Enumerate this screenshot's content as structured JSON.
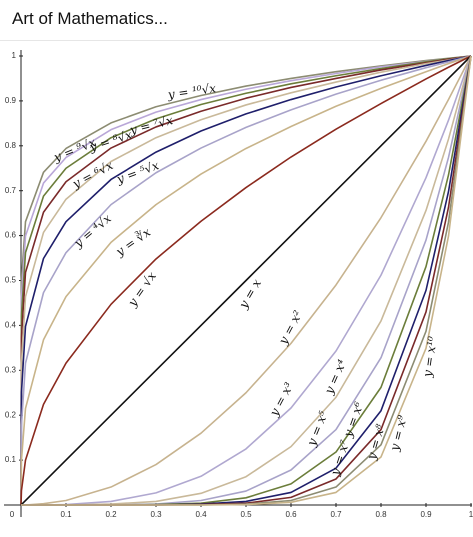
{
  "header": {
    "title": "Art of Mathematics..."
  },
  "chart_data": {
    "type": "line",
    "x": [
      0,
      0.001,
      0.01,
      0.05,
      0.1,
      0.2,
      0.3,
      0.4,
      0.5,
      0.6,
      0.7,
      0.8,
      0.9,
      0.95,
      1
    ],
    "xlim": [
      0,
      1
    ],
    "ylim": [
      0,
      1
    ],
    "xticks": [
      0,
      0.1,
      0.2,
      0.3,
      0.4,
      0.5,
      0.6,
      0.7,
      0.8,
      0.9,
      1
    ],
    "yticks": [
      0.1,
      0.2,
      0.3,
      0.4,
      0.5,
      0.6,
      0.7,
      0.8,
      0.9,
      1
    ],
    "series": [
      {
        "name": "y = ¹⁰√x",
        "color": "#8c8c72",
        "values": [
          0,
          0.501,
          0.631,
          0.741,
          0.794,
          0.851,
          0.887,
          0.912,
          0.933,
          0.95,
          0.965,
          0.978,
          0.99,
          0.995,
          1
        ]
      },
      {
        "name": "y = ⁹√x",
        "color": "#b9a7d8",
        "values": [
          0,
          0.464,
          0.599,
          0.717,
          0.774,
          0.836,
          0.875,
          0.903,
          0.926,
          0.945,
          0.961,
          0.976,
          0.988,
          0.994,
          1
        ]
      },
      {
        "name": "y = ⁸√x",
        "color": "#6b7d3a",
        "values": [
          0,
          0.422,
          0.562,
          0.688,
          0.75,
          0.818,
          0.86,
          0.892,
          0.917,
          0.938,
          0.956,
          0.972,
          0.987,
          0.994,
          1
        ]
      },
      {
        "name": "y = ⁷√x",
        "color": "#7a2a2a",
        "values": [
          0,
          0.373,
          0.518,
          0.652,
          0.72,
          0.795,
          0.842,
          0.877,
          0.906,
          0.93,
          0.95,
          0.969,
          0.985,
          0.993,
          1
        ]
      },
      {
        "name": "y = ⁶√x",
        "color": "#c9b99a",
        "values": [
          0,
          0.316,
          0.464,
          0.607,
          0.681,
          0.765,
          0.818,
          0.858,
          0.891,
          0.918,
          0.942,
          0.964,
          0.983,
          0.991,
          1
        ]
      },
      {
        "name": "y = ⁵√x",
        "color": "#1f1f6b",
        "values": [
          0,
          0.251,
          0.398,
          0.549,
          0.631,
          0.725,
          0.786,
          0.833,
          0.871,
          0.903,
          0.931,
          0.956,
          0.979,
          0.99,
          1
        ]
      },
      {
        "name": "y = ⁴√x",
        "color": "#a8a3c9",
        "values": [
          0,
          0.178,
          0.316,
          0.473,
          0.562,
          0.669,
          0.74,
          0.795,
          0.841,
          0.88,
          0.915,
          0.946,
          0.974,
          0.987,
          1
        ]
      },
      {
        "name": "y = ∛x",
        "color": "#c8b48a",
        "values": [
          0,
          0.1,
          0.215,
          0.368,
          0.464,
          0.585,
          0.669,
          0.737,
          0.794,
          0.843,
          0.888,
          0.928,
          0.965,
          0.983,
          1
        ]
      },
      {
        "name": "y = √x",
        "color": "#8b2a1e",
        "values": [
          0,
          0.032,
          0.1,
          0.224,
          0.316,
          0.447,
          0.548,
          0.632,
          0.707,
          0.775,
          0.837,
          0.894,
          0.949,
          0.975,
          1
        ]
      },
      {
        "name": "y = x",
        "color": "#111111",
        "values": [
          0,
          0.001,
          0.01,
          0.05,
          0.1,
          0.2,
          0.3,
          0.4,
          0.5,
          0.6,
          0.7,
          0.8,
          0.9,
          0.95,
          1
        ]
      },
      {
        "name": "y = x²",
        "color": "#c7b38f",
        "values": [
          0,
          0,
          0,
          0.003,
          0.01,
          0.04,
          0.09,
          0.16,
          0.25,
          0.36,
          0.49,
          0.64,
          0.81,
          0.903,
          1
        ]
      },
      {
        "name": "y = x³",
        "color": "#b0a8d0",
        "values": [
          0,
          0,
          0,
          0,
          0.001,
          0.008,
          0.027,
          0.064,
          0.125,
          0.216,
          0.343,
          0.512,
          0.729,
          0.857,
          1
        ]
      },
      {
        "name": "y = x⁴",
        "color": "#c9b99a",
        "values": [
          0,
          0,
          0,
          0,
          0,
          0.002,
          0.008,
          0.026,
          0.063,
          0.13,
          0.24,
          0.41,
          0.656,
          0.815,
          1
        ]
      },
      {
        "name": "y = x⁵",
        "color": "#a8a3c9",
        "values": [
          0,
          0,
          0,
          0,
          0,
          0,
          0.002,
          0.01,
          0.031,
          0.078,
          0.168,
          0.328,
          0.59,
          0.774,
          1
        ]
      },
      {
        "name": "y = x⁶",
        "color": "#6b7d3a",
        "values": [
          0,
          0,
          0,
          0,
          0,
          0,
          0.001,
          0.004,
          0.016,
          0.047,
          0.118,
          0.262,
          0.531,
          0.735,
          1
        ]
      },
      {
        "name": "y = x⁷",
        "color": "#1f1f6b",
        "values": [
          0,
          0,
          0,
          0,
          0,
          0,
          0,
          0.002,
          0.008,
          0.028,
          0.082,
          0.21,
          0.478,
          0.698,
          1
        ]
      },
      {
        "name": "y = x⁸",
        "color": "#7a2a2a",
        "values": [
          0,
          0,
          0,
          0,
          0,
          0,
          0,
          0.001,
          0.004,
          0.017,
          0.058,
          0.168,
          0.43,
          0.663,
          1
        ]
      },
      {
        "name": "y = x⁹",
        "color": "#8c8c72",
        "values": [
          0,
          0,
          0,
          0,
          0,
          0,
          0,
          0,
          0.002,
          0.01,
          0.04,
          0.134,
          0.387,
          0.63,
          1
        ]
      },
      {
        "name": "y = x¹⁰",
        "color": "#c8b48a",
        "values": [
          0,
          0,
          0,
          0,
          0,
          0,
          0,
          0,
          0.001,
          0.006,
          0.028,
          0.107,
          0.349,
          0.599,
          1
        ]
      }
    ]
  }
}
